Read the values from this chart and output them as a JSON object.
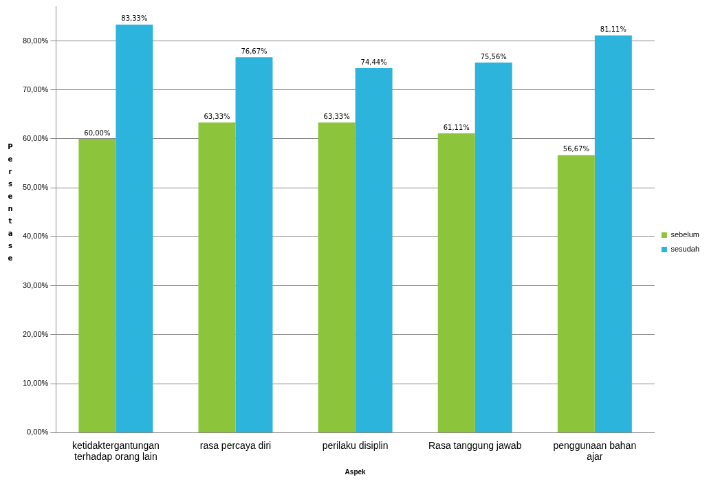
{
  "chart_data": {
    "type": "bar",
    "xlabel": "Aspek",
    "ylabel": "Persentase",
    "categories": [
      "ketidaktergantungan terhadap orang lain",
      "rasa percaya diri",
      "perilaku disiplin",
      "Rasa tanggung jawab",
      "penggunaan bahan ajar"
    ],
    "series": [
      {
        "name": "sebelum",
        "color": "#8cc43c",
        "values": [
          60.0,
          63.33,
          63.33,
          61.11,
          56.67
        ],
        "value_labels": [
          "60,00%",
          "63,33%",
          "63,33%",
          "61,11%",
          "56,67%"
        ]
      },
      {
        "name": "sesudah",
        "color": "#2cb4dc",
        "values": [
          83.33,
          76.67,
          74.44,
          75.56,
          81.11
        ],
        "value_labels": [
          "83,33%",
          "76,67%",
          "74,44%",
          "75,56%",
          "81,11%"
        ]
      }
    ],
    "ylim": [
      0,
      87
    ],
    "yticks": [
      {
        "value": 0,
        "label": "0,00%"
      },
      {
        "value": 10,
        "label": "10,00%"
      },
      {
        "value": 20,
        "label": "20,00%"
      },
      {
        "value": 30,
        "label": "30,00%"
      },
      {
        "value": 40,
        "label": "40,00%"
      },
      {
        "value": 50,
        "label": "50,00%"
      },
      {
        "value": 60,
        "label": "60,00%"
      },
      {
        "value": 70,
        "label": "70,00%"
      },
      {
        "value": 80,
        "label": "80,00%"
      }
    ],
    "grid": "y",
    "legend": "right"
  }
}
